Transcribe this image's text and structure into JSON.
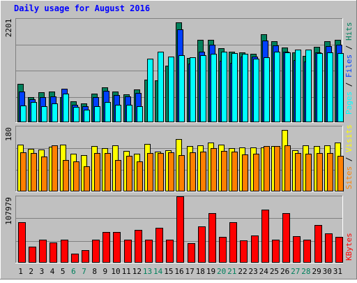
{
  "title": "Daily usage for August 2016",
  "colors": {
    "background": "#c0c0c0",
    "title": "#0000ff",
    "hits": "#00805c",
    "files": "#0040ff",
    "pages": "#00ffff",
    "visits": "#ffff00",
    "sites": "#ff8000",
    "kbytes": "#ff0000",
    "weekend_day": "#00805c",
    "weekday": "#000000"
  },
  "chart_data": [
    {
      "type": "bar",
      "name": "hits-files-pages",
      "categories": [
        "1",
        "2",
        "3",
        "4",
        "5",
        "6",
        "7",
        "8",
        "9",
        "10",
        "11",
        "12",
        "13",
        "14",
        "15",
        "16",
        "17",
        "18",
        "19",
        "20",
        "21",
        "22",
        "23",
        "24",
        "25",
        "26",
        "27",
        "28",
        "29",
        "30",
        "31"
      ],
      "weekend_days": [
        "6",
        "7",
        "13",
        "14",
        "20",
        "21",
        "27",
        "28"
      ],
      "ymax_label": "2201",
      "ylim": [
        0,
        2201
      ],
      "legend": [
        "Pages",
        "Files",
        "Hits"
      ],
      "series": [
        {
          "name": "Hits",
          "values": [
            825,
            536,
            634,
            649,
            540,
            442,
            395,
            612,
            746,
            654,
            593,
            694,
            901,
            895,
            1200,
            2130,
            1375,
            1760,
            1760,
            1570,
            1500,
            1480,
            1460,
            1870,
            1720,
            1590,
            1480,
            1420,
            1610,
            1720,
            1760
          ]
        },
        {
          "name": "Files",
          "values": [
            660,
            495,
            531,
            544,
            708,
            374,
            340,
            528,
            675,
            580,
            550,
            630,
            0,
            0,
            0,
            1980,
            1255,
            1500,
            1650,
            1310,
            1270,
            1400,
            1400,
            1740,
            1630,
            1500,
            1330,
            1300,
            1480,
            1620,
            1650
          ]
        },
        {
          "name": "Pages",
          "values": [
            357,
            434,
            342,
            398,
            612,
            323,
            264,
            339,
            432,
            378,
            373,
            348,
            1360,
            1500,
            1400,
            1435,
            1390,
            1430,
            1460,
            1500,
            1470,
            1460,
            1360,
            1390,
            1500,
            1490,
            1550,
            1550,
            1470,
            1480,
            1470
          ]
        }
      ]
    },
    {
      "type": "bar",
      "name": "visits-sites",
      "categories": [
        "1",
        "2",
        "3",
        "4",
        "5",
        "6",
        "7",
        "8",
        "9",
        "10",
        "11",
        "12",
        "13",
        "14",
        "15",
        "16",
        "17",
        "18",
        "19",
        "20",
        "21",
        "22",
        "23",
        "24",
        "25",
        "26",
        "27",
        "28",
        "29",
        "30",
        "31"
      ],
      "ymax_label": "180",
      "ylim": [
        0,
        180
      ],
      "legend": [
        "Sites",
        "Visits"
      ],
      "series": [
        {
          "name": "Visits",
          "values": [
            130,
            118,
            116,
            123,
            130,
            105,
            100,
            125,
            120,
            128,
            113,
            104,
            131,
            111,
            115,
            145,
            125,
            128,
            135,
            130,
            120,
            121,
            121,
            122,
            126,
            170,
            114,
            127,
            126,
            128,
            136
          ]
        },
        {
          "name": "Sites",
          "values": [
            109,
            106,
            96,
            128,
            88,
            84,
            69,
            106,
            107,
            88,
            99,
            83,
            106,
            106,
            109,
            100,
            109,
            110,
            120,
            113,
            111,
            103,
            105,
            126,
            126,
            128,
            107,
            105,
            106,
            107,
            98
          ]
        }
      ]
    },
    {
      "type": "bar",
      "name": "kbytes",
      "categories": [
        "1",
        "2",
        "3",
        "4",
        "5",
        "6",
        "7",
        "8",
        "9",
        "10",
        "11",
        "12",
        "13",
        "14",
        "15",
        "16",
        "17",
        "18",
        "19",
        "20",
        "21",
        "22",
        "23",
        "24",
        "25",
        "26",
        "27",
        "28",
        "29",
        "30",
        "31"
      ],
      "ymax_label": "107979",
      "ylim": [
        0,
        107979
      ],
      "legend": [
        "KBytes"
      ],
      "series": [
        {
          "name": "KBytes",
          "values": [
            66000,
            26000,
            37000,
            33000,
            37000,
            15000,
            20000,
            38000,
            50000,
            50000,
            38000,
            53000,
            38000,
            57000,
            38000,
            108000,
            32000,
            59000,
            81000,
            42000,
            66000,
            36000,
            44000,
            86000,
            37000,
            81000,
            43000,
            38000,
            61000,
            48000,
            42000
          ]
        }
      ]
    }
  ]
}
